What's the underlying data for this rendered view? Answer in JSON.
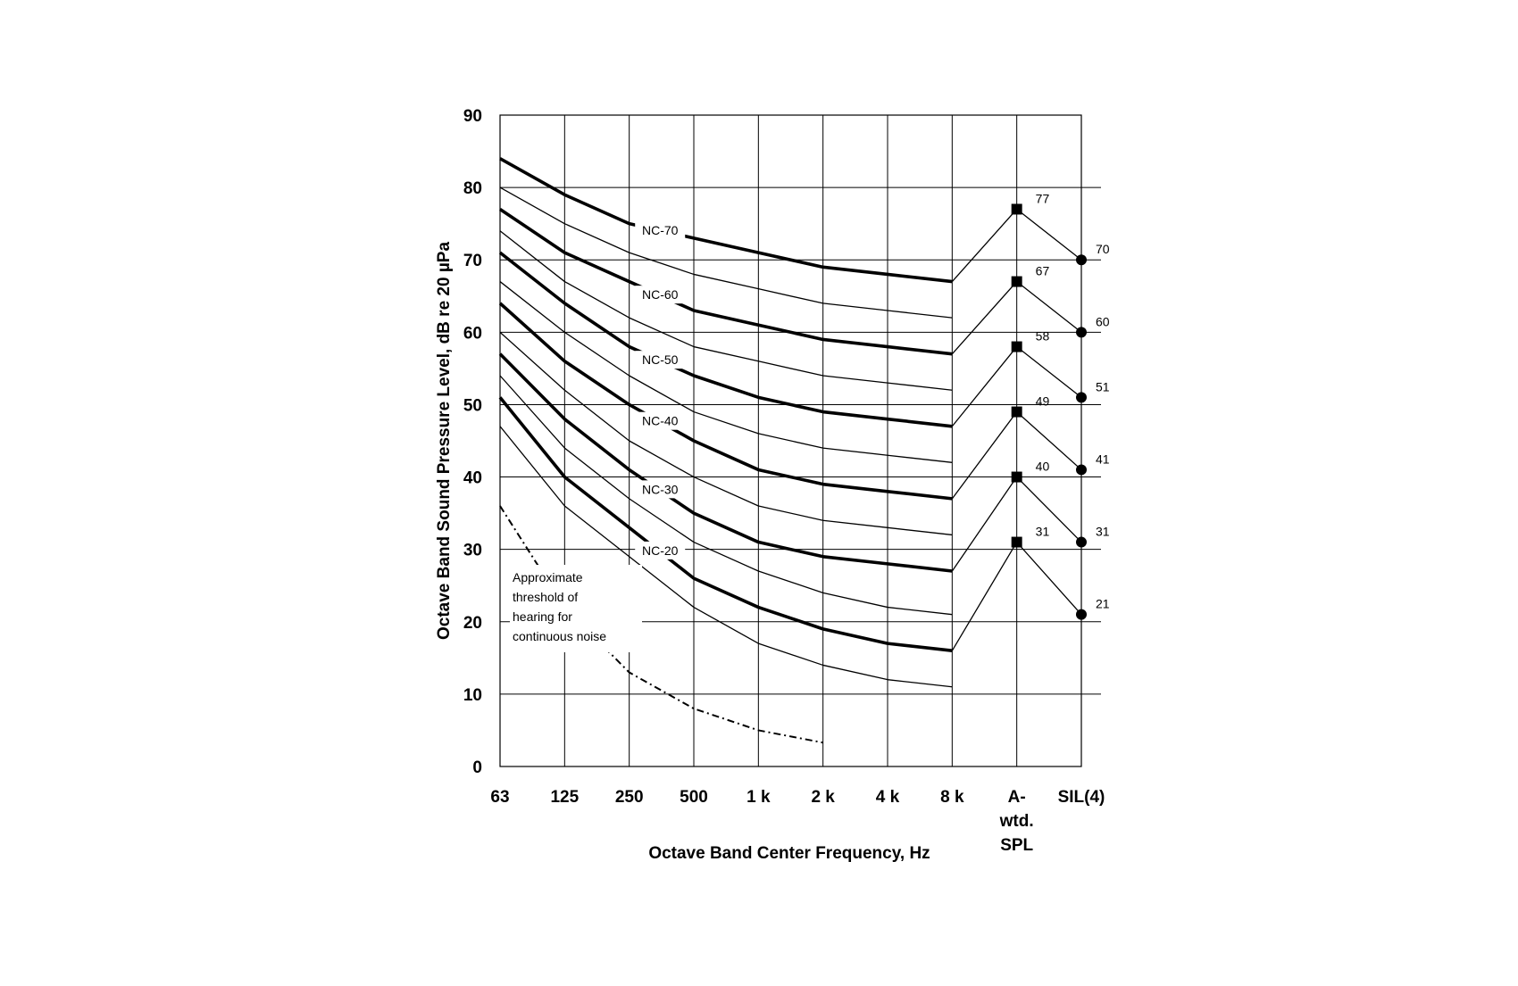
{
  "chart_data": {
    "type": "line",
    "title": "",
    "xlabel": "Octave Band Center Frequency, Hz",
    "ylabel": "Octave Band Sound Pressure Level, dB re 20 µPa",
    "ylim": [
      0,
      90
    ],
    "y_ticks": [
      "0",
      "10",
      "20",
      "30",
      "40",
      "50",
      "60",
      "70",
      "80",
      "90"
    ],
    "categories": [
      "63",
      "125",
      "250",
      "500",
      "1 k",
      "2 k",
      "4 k",
      "8 k"
    ],
    "extra_columns": [
      "A-wtd. SPL",
      "SIL(4)"
    ],
    "extra_column_lines": [
      [
        "A-",
        "wtd.",
        "SPL"
      ],
      [
        "SIL(4)"
      ]
    ],
    "grid": true,
    "series": [
      {
        "name": "NC-70",
        "values": [
          84,
          79,
          75,
          73,
          71,
          69,
          68,
          67
        ],
        "a_weighted": 77,
        "sil": 70,
        "a_label": "77",
        "sil_label": "70"
      },
      {
        "name": "",
        "values": [
          80,
          75,
          71,
          68,
          66,
          64,
          63,
          62
        ]
      },
      {
        "name": "NC-60",
        "values": [
          77,
          71,
          67,
          63,
          61,
          59,
          58,
          57
        ],
        "a_weighted": 67,
        "sil": 60,
        "a_label": "67",
        "sil_label": "60"
      },
      {
        "name": "",
        "values": [
          74,
          67,
          62,
          58,
          56,
          54,
          53,
          52
        ]
      },
      {
        "name": "NC-50",
        "values": [
          71,
          64,
          58,
          54,
          51,
          49,
          48,
          47
        ],
        "a_weighted": 58,
        "sil": 51,
        "a_label": "58",
        "sil_label": "51"
      },
      {
        "name": "",
        "values": [
          67,
          60,
          54,
          49,
          46,
          44,
          43,
          42
        ]
      },
      {
        "name": "NC-40",
        "values": [
          64,
          56,
          50,
          45,
          41,
          39,
          38,
          37
        ],
        "a_weighted": 49,
        "sil": 41,
        "a_label": "49",
        "sil_label": "41"
      },
      {
        "name": "",
        "values": [
          60,
          52,
          45,
          40,
          36,
          34,
          33,
          32
        ]
      },
      {
        "name": "NC-30",
        "values": [
          57,
          48,
          41,
          35,
          31,
          29,
          28,
          27
        ],
        "a_weighted": 40,
        "sil": 31,
        "a_label": "40",
        "sil_label": "31"
      },
      {
        "name": "",
        "values": [
          54,
          44,
          37,
          31,
          27,
          24,
          22,
          21
        ]
      },
      {
        "name": "NC-20",
        "values": [
          51,
          40,
          33,
          26,
          22,
          19,
          17,
          16
        ],
        "a_weighted": 31,
        "sil": 21,
        "a_label": "31",
        "sil_label": "21"
      },
      {
        "name": "",
        "values": [
          47,
          36,
          29,
          22,
          17,
          14,
          12,
          11
        ]
      }
    ],
    "threshold": {
      "values": [
        36,
        22,
        13,
        8,
        5,
        3.3
      ],
      "style": "dash-dot",
      "annotation": [
        "Approximate",
        "threshold of",
        "hearing for",
        "continuous noise"
      ]
    },
    "colors": {
      "background": "#ffffff",
      "ink": "#000000",
      "grid": "#000000"
    }
  }
}
